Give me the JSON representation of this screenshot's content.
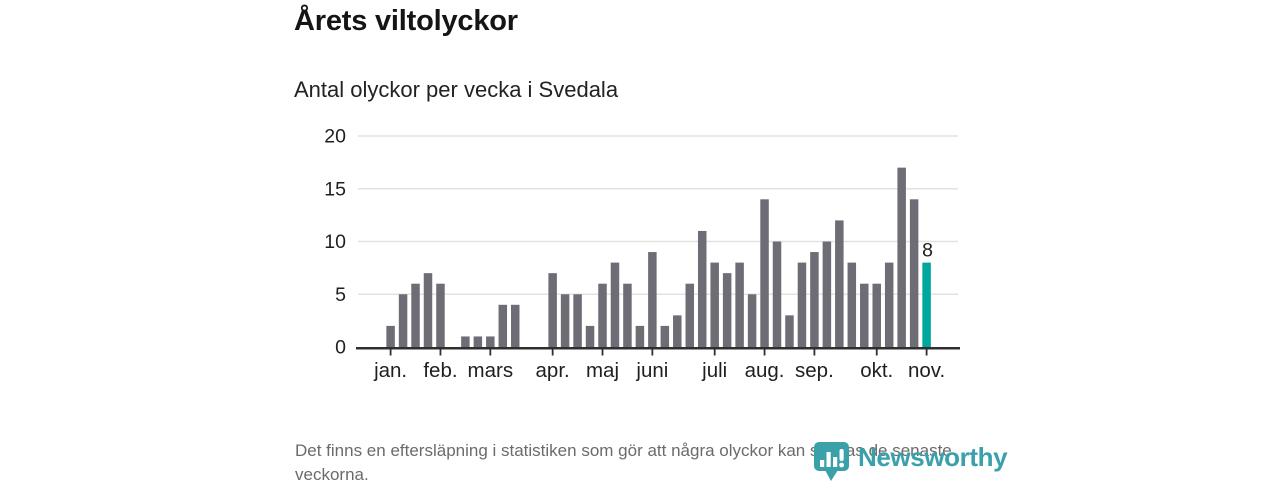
{
  "header": {
    "title": "Årets viltolyckor",
    "subtitle": "Antal olyckor per vecka i Svedala"
  },
  "chart_data": {
    "type": "bar",
    "title": "Årets viltolyckor",
    "subtitle": "Antal olyckor per vecka i Svedala",
    "x_unit": "vecka",
    "values": [
      2,
      5,
      6,
      7,
      6,
      0,
      1,
      1,
      1,
      4,
      4,
      0,
      0,
      7,
      5,
      5,
      2,
      6,
      8,
      6,
      2,
      9,
      2,
      3,
      6,
      11,
      8,
      7,
      8,
      5,
      14,
      10,
      3,
      8,
      9,
      10,
      12,
      8,
      6,
      6,
      8,
      17,
      14,
      8
    ],
    "month_ticks": [
      {
        "i": 0,
        "label": "jan."
      },
      {
        "i": 4,
        "label": "feb."
      },
      {
        "i": 8,
        "label": "mars"
      },
      {
        "i": 13,
        "label": "apr."
      },
      {
        "i": 17,
        "label": "maj"
      },
      {
        "i": 21,
        "label": "juni"
      },
      {
        "i": 26,
        "label": "juli"
      },
      {
        "i": 30,
        "label": "aug."
      },
      {
        "i": 34,
        "label": "sep."
      },
      {
        "i": 39,
        "label": "okt."
      },
      {
        "i": 43,
        "label": "nov."
      }
    ],
    "ylim": [
      0,
      20
    ],
    "yticks": [
      0,
      5,
      10,
      15,
      20
    ],
    "grid": true,
    "legend": false,
    "highlight": {
      "index": 43,
      "value": 8,
      "label": "8"
    },
    "colors": {
      "bar": "#6e6d76",
      "highlight": "#00a79d",
      "grid": "#e2e2e2",
      "axis": "#2f2f2f",
      "text": "#1f1f1f"
    }
  },
  "footer": {
    "note": "Det finns en eftersläpning i statistiken som gör att några olyckor kan saknas de senaste veckorna."
  },
  "logo": {
    "wordmark": "Newsworthy",
    "icon": "newsworthy-bubble-barchart-icon",
    "color": "#3aa1ab"
  }
}
